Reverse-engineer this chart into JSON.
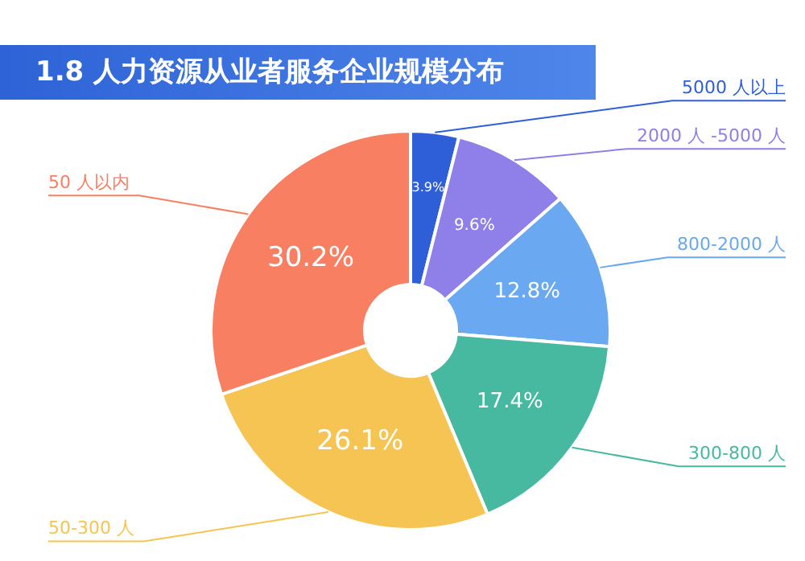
{
  "chart_data": {
    "type": "donut",
    "title": "1.8 人力资源从业者服务企业规模分布",
    "categories": [
      "5000 人以上",
      "2000 人 -5000 人",
      "800-2000 人",
      "300-800 人",
      "50-300 人",
      "50 人以内"
    ],
    "values": [
      3.9,
      9.6,
      12.8,
      17.4,
      26.1,
      30.2
    ],
    "colors": [
      "#2f5fd8",
      "#8f7fe8",
      "#6aa8f2",
      "#46b9a0",
      "#f6c453",
      "#f87f62"
    ],
    "value_labels": [
      "3.9%",
      "9.6%",
      "12.8%",
      "17.4%",
      "26.1%",
      "30.2%"
    ],
    "legend": false
  }
}
